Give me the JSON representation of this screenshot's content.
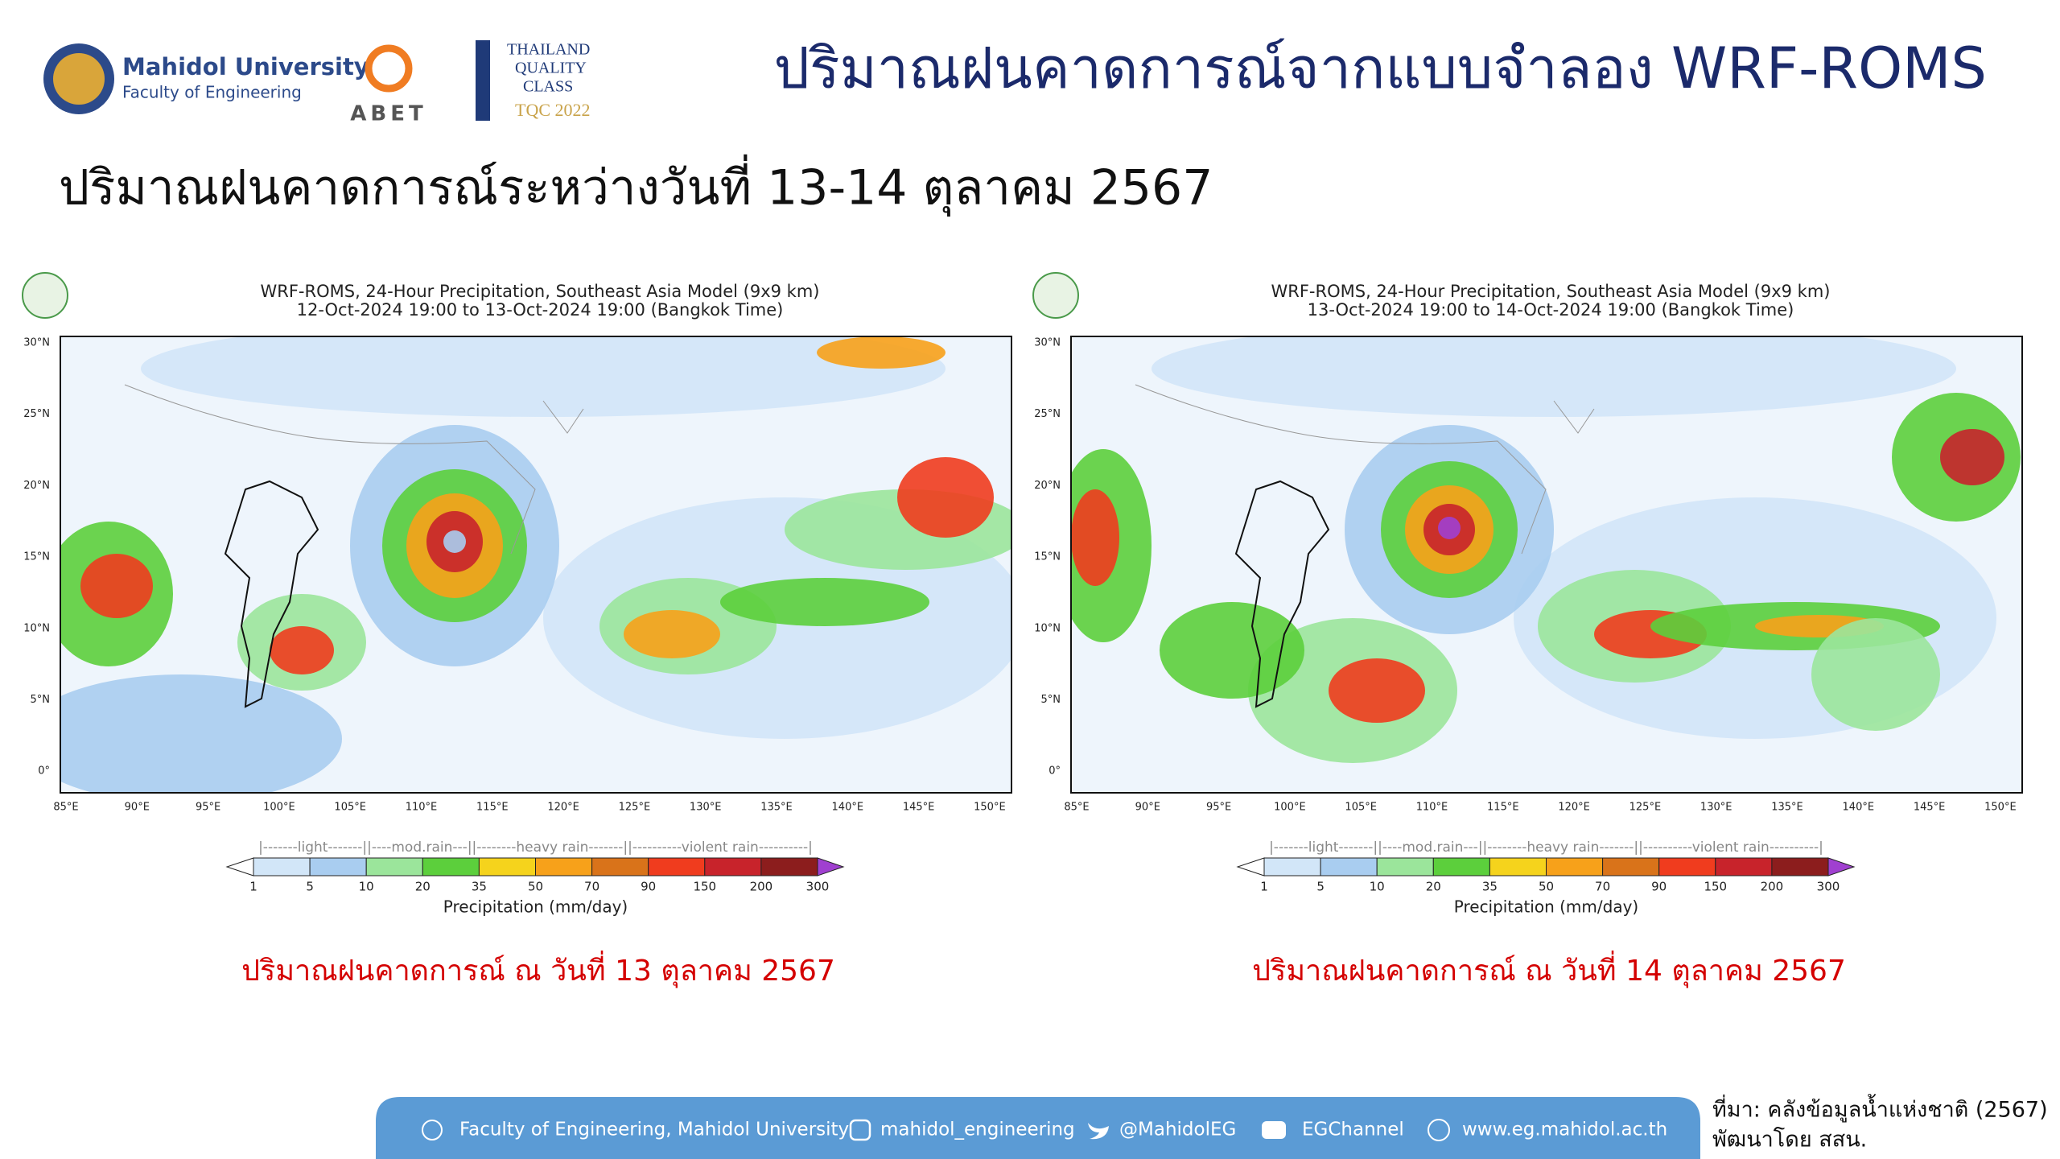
{
  "header": {
    "university": "Mahidol University",
    "faculty": "Faculty of Engineering",
    "abet": "ABET",
    "tqc": [
      "THAILAND",
      "QUALITY",
      "CLASS",
      "TQC 2022"
    ],
    "title": "ปริมาณฝนคาดการณ์จากแบบจำลอง WRF-ROMS"
  },
  "subtitle": "ปริมาณฝนคาดการณ์ระหว่างวันที่ 13-14 ตุลาคม 2567",
  "maps": [
    {
      "title": "WRF-ROMS, 24-Hour Precipitation, Southeast Asia Model (9x9 km)",
      "period": "12-Oct-2024 19:00 to 13-Oct-2024 19:00 (Bangkok Time)",
      "caption": "ปริมาณฝนคาดการณ์ ณ วันที่ 13 ตุลาคม 2567"
    },
    {
      "title": "WRF-ROMS, 24-Hour Precipitation, Southeast Asia Model (9x9 km)",
      "period": "13-Oct-2024 19:00 to 14-Oct-2024 19:00 (Bangkok Time)",
      "caption": "ปริมาณฝนคาดการณ์ ณ วันที่ 14 ตุลาคม 2567"
    }
  ],
  "lat_labels": [
    "30°N",
    "25°N",
    "20°N",
    "15°N",
    "10°N",
    "5°N",
    "0°"
  ],
  "lon_labels": [
    "85°E",
    "90°E",
    "95°E",
    "100°E",
    "105°E",
    "110°E",
    "115°E",
    "120°E",
    "125°E",
    "130°E",
    "135°E",
    "140°E",
    "145°E",
    "150°E"
  ],
  "colorbar": {
    "classes": "|-------light-------||----mod.rain---||--------heavy rain-------||----------violent rain----------|",
    "levels": [
      1,
      5,
      10,
      20,
      35,
      50,
      70,
      90,
      150,
      200,
      300
    ],
    "colors": [
      "#d2e6f8",
      "#a9cdf0",
      "#9be59b",
      "#5ccf3c",
      "#f5d31c",
      "#f7a11a",
      "#d9731a",
      "#f03c1e",
      "#c8232b",
      "#8c1d1d"
    ],
    "over_color": "#a040d0",
    "label": "Precipitation (mm/day)"
  },
  "footer": {
    "items": [
      "Faculty of Engineering, Mahidol University",
      "mahidol_engineering",
      "@MahidolEG",
      "EGChannel",
      "www.eg.mahidol.ac.th"
    ],
    "source": [
      "ที่มา: คลังข้อมูลน้ำแห่งชาติ (2567)",
      "พัฒนาโดย สสน."
    ]
  }
}
